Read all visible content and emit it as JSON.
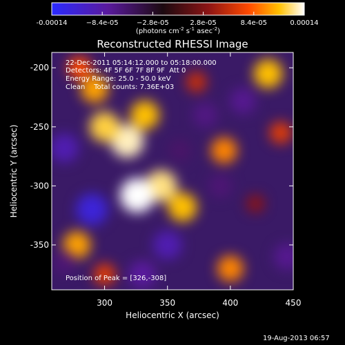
{
  "chart_data": {
    "type": "heatmap",
    "title": "Reconstructed RHESSI Image",
    "xlabel": "Heliocentric X (arcsec)",
    "ylabel": "Heliocentric Y (arcsec)",
    "xlim": [
      258,
      450
    ],
    "ylim": [
      -388,
      -187
    ],
    "x_ticks": [
      300,
      350,
      400,
      450
    ],
    "y_ticks": [
      -200,
      -250,
      -300,
      -350
    ],
    "colorbar": {
      "min": -0.00014,
      "max": 0.00014,
      "tick_values": [
        -0.00014,
        -8.4e-05,
        -2.8e-05,
        2.8e-05,
        8.4e-05,
        0.00014
      ],
      "tick_labels": [
        "-0.00014",
        "−8.4e-05",
        "−2.8e-05",
        "2.8e-05",
        "8.4e-05",
        "0.00014"
      ],
      "unit_parts": [
        "(photons cm",
        "-2",
        " s",
        "-1",
        " asec",
        "-2",
        ")"
      ]
    },
    "peak": [
      326,
      -308
    ],
    "source_blobs": [
      {
        "x": 318,
        "y": -262,
        "value": 0.00013
      },
      {
        "x": 300,
        "y": -250,
        "value": 0.00011
      },
      {
        "x": 332,
        "y": -240,
        "value": 0.0001
      },
      {
        "x": 345,
        "y": -300,
        "value": 0.00012
      },
      {
        "x": 326,
        "y": -308,
        "value": 0.00014
      },
      {
        "x": 362,
        "y": -318,
        "value": 0.0001
      },
      {
        "x": 292,
        "y": -218,
        "value": 9e-05
      },
      {
        "x": 280,
        "y": -200,
        "value": 6e-05
      },
      {
        "x": 395,
        "y": -270,
        "value": 8e-05
      },
      {
        "x": 430,
        "y": -205,
        "value": 0.0001
      },
      {
        "x": 440,
        "y": -255,
        "value": 5e-05
      },
      {
        "x": 400,
        "y": -370,
        "value": 8e-05
      },
      {
        "x": 278,
        "y": -350,
        "value": 9e-05
      },
      {
        "x": 300,
        "y": -375,
        "value": 5e-05
      },
      {
        "x": 373,
        "y": -212,
        "value": 4e-05
      },
      {
        "x": 420,
        "y": -315,
        "value": 2e-05
      },
      {
        "x": 290,
        "y": -320,
        "value": -0.00012
      },
      {
        "x": 268,
        "y": -268,
        "value": -0.0001
      },
      {
        "x": 380,
        "y": -240,
        "value": -7e-05
      },
      {
        "x": 350,
        "y": -350,
        "value": -0.0001
      },
      {
        "x": 410,
        "y": -228,
        "value": -8e-05
      },
      {
        "x": 330,
        "y": -375,
        "value": -9e-05
      },
      {
        "x": 392,
        "y": -300,
        "value": -6e-05
      },
      {
        "x": 445,
        "y": -360,
        "value": -8e-05
      },
      {
        "x": 268,
        "y": -365,
        "value": -6e-05
      },
      {
        "x": 360,
        "y": -270,
        "value": -5e-05
      }
    ]
  },
  "annotations": {
    "time_range": "22-Dec-2011 05:14:12.000 to 05:18:00.000",
    "detectors": "Detectors: 4F 5F 6F 7F 8F 9F  Att 0",
    "energy_range": "Energy Range: 25.0 - 50.0 keV",
    "clean_info": "Clean    Total counts: 7.36E+03",
    "peak_label": "Position of Peak = [326,-308]"
  },
  "footer": {
    "timestamp": "19-Aug-2013 06:57"
  }
}
